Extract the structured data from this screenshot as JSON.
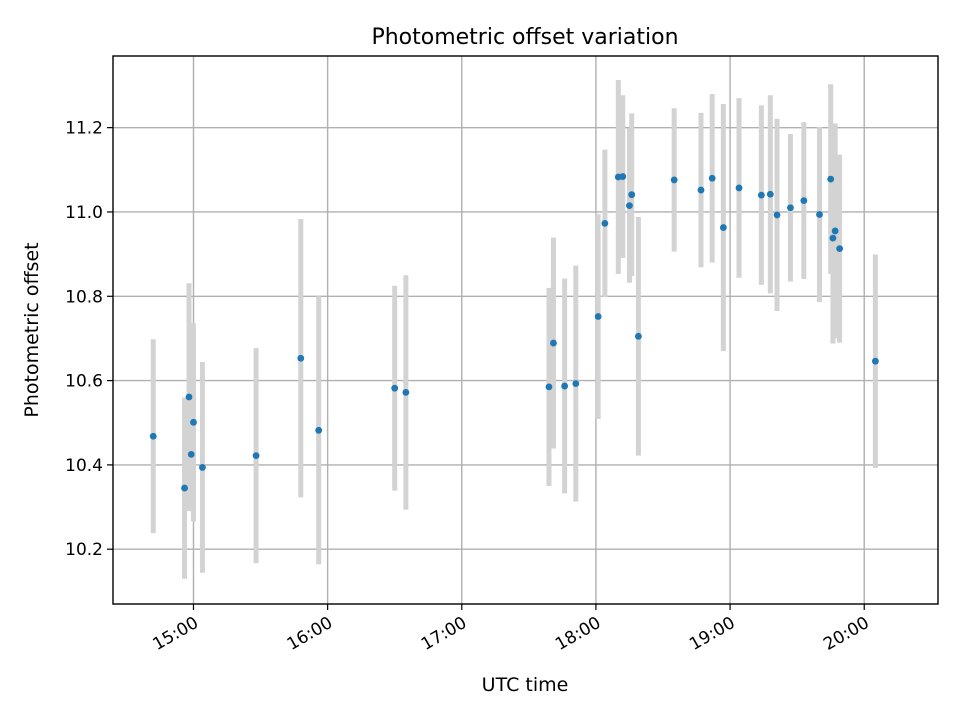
{
  "chart_data": {
    "type": "scatter",
    "title": "Photometric offset variation",
    "xlabel": "UTC time",
    "ylabel": "Photometric offset",
    "xlim": [
      "14:24",
      "20:33"
    ],
    "ylim": [
      10.07,
      11.37
    ],
    "x_ticks": [
      "15:00",
      "16:00",
      "17:00",
      "18:00",
      "19:00",
      "20:00"
    ],
    "y_ticks": [
      "10.2",
      "10.4",
      "10.6",
      "10.8",
      "11.0",
      "11.2"
    ],
    "grid": true,
    "colors": {
      "marker": "#1f77b4",
      "errorbar": "#d3d3d3",
      "grid": "#b0b0b0"
    },
    "series": [
      {
        "points": [
          {
            "t": "14:42",
            "y": 10.468,
            "err": 0.23
          },
          {
            "t": "14:56",
            "y": 10.345,
            "err": 0.215
          },
          {
            "t": "14:58",
            "y": 10.561,
            "err": 0.27
          },
          {
            "t": "14:59",
            "y": 10.425,
            "err": 0.135
          },
          {
            "t": "15:00",
            "y": 10.501,
            "err": 0.235
          },
          {
            "t": "15:04",
            "y": 10.394,
            "err": 0.25
          },
          {
            "t": "15:28",
            "y": 10.422,
            "err": 0.255
          },
          {
            "t": "15:48",
            "y": 10.653,
            "err": 0.33
          },
          {
            "t": "15:56",
            "y": 10.482,
            "err": 0.318
          },
          {
            "t": "16:30",
            "y": 10.582,
            "err": 0.243
          },
          {
            "t": "16:35",
            "y": 10.572,
            "err": 0.278
          },
          {
            "t": "17:39",
            "y": 10.585,
            "err": 0.235
          },
          {
            "t": "17:41",
            "y": 10.689,
            "err": 0.25
          },
          {
            "t": "17:46",
            "y": 10.587,
            "err": 0.255
          },
          {
            "t": "17:51",
            "y": 10.593,
            "err": 0.28
          },
          {
            "t": "18:01",
            "y": 10.752,
            "err": 0.243
          },
          {
            "t": "18:04",
            "y": 10.973,
            "err": 0.175
          },
          {
            "t": "18:10",
            "y": 11.083,
            "err": 0.23
          },
          {
            "t": "18:12",
            "y": 11.084,
            "err": 0.193
          },
          {
            "t": "18:15",
            "y": 11.015,
            "err": 0.183
          },
          {
            "t": "18:16",
            "y": 11.041,
            "err": 0.193
          },
          {
            "t": "18:19",
            "y": 10.705,
            "err": 0.283
          },
          {
            "t": "18:35",
            "y": 11.076,
            "err": 0.17
          },
          {
            "t": "18:47",
            "y": 11.052,
            "err": 0.183
          },
          {
            "t": "18:52",
            "y": 11.08,
            "err": 0.2
          },
          {
            "t": "18:57",
            "y": 10.963,
            "err": 0.293
          },
          {
            "t": "19:04",
            "y": 11.057,
            "err": 0.213
          },
          {
            "t": "19:14",
            "y": 11.04,
            "err": 0.213
          },
          {
            "t": "19:18",
            "y": 11.042,
            "err": 0.235
          },
          {
            "t": "19:21",
            "y": 10.993,
            "err": 0.228
          },
          {
            "t": "19:27",
            "y": 11.01,
            "err": 0.175
          },
          {
            "t": "19:33",
            "y": 11.027,
            "err": 0.186
          },
          {
            "t": "19:40",
            "y": 10.994,
            "err": 0.208
          },
          {
            "t": "19:45",
            "y": 11.078,
            "err": 0.225
          },
          {
            "t": "19:46",
            "y": 10.938,
            "err": 0.25
          },
          {
            "t": "19:47",
            "y": 10.955,
            "err": 0.255
          },
          {
            "t": "19:49",
            "y": 10.913,
            "err": 0.223
          },
          {
            "t": "20:05",
            "y": 10.646,
            "err": 0.253
          }
        ]
      }
    ]
  }
}
